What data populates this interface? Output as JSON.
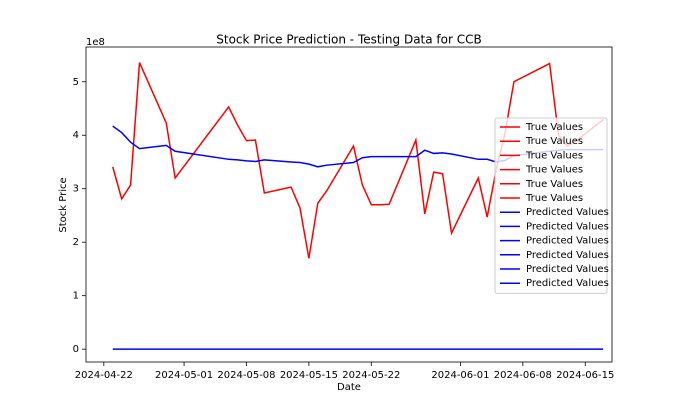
{
  "chart_data": {
    "type": "line",
    "title": "Stock Price Prediction - Testing Data for CCB",
    "x_label": "Date",
    "y_label": "Stock Price",
    "y_offset_label": "1e8",
    "x": [
      "2024-04-23",
      "2024-04-24",
      "2024-04-25",
      "2024-04-26",
      "2024-04-29",
      "2024-04-30",
      "2024-05-06",
      "2024-05-07",
      "2024-05-08",
      "2024-05-09",
      "2024-05-10",
      "2024-05-13",
      "2024-05-14",
      "2024-05-15",
      "2024-05-16",
      "2024-05-17",
      "2024-05-20",
      "2024-05-21",
      "2024-05-22",
      "2024-05-23",
      "2024-05-24",
      "2024-05-27",
      "2024-05-28",
      "2024-05-29",
      "2024-05-30",
      "2024-05-31",
      "2024-06-03",
      "2024-06-04",
      "2024-06-05",
      "2024-06-06",
      "2024-06-07",
      "2024-06-11",
      "2024-06-12",
      "2024-06-13",
      "2024-06-14",
      "2024-06-17"
    ],
    "series": [
      {
        "color": "#ff0000",
        "values": [
          3.41,
          2.81,
          3.07,
          5.36,
          4.23,
          3.2,
          4.53,
          4.19,
          3.9,
          3.91,
          2.92,
          3.03,
          2.64,
          1.7,
          2.73,
          2.96,
          3.8,
          3.07,
          2.7,
          2.7,
          2.71,
          3.91,
          2.53,
          3.31,
          3.28,
          2.17,
          3.2,
          2.47,
          3.35,
          4.04,
          5.0,
          5.34,
          4.0,
          3.8,
          3.9,
          4.29
        ]
      },
      {
        "color": "#0000ff",
        "values": [
          4.17,
          4.05,
          3.87,
          3.75,
          3.81,
          3.7,
          3.55,
          3.54,
          3.52,
          3.51,
          3.54,
          3.5,
          3.49,
          3.46,
          3.41,
          3.44,
          3.49,
          3.58,
          3.6,
          3.6,
          3.6,
          3.6,
          3.72,
          3.66,
          3.67,
          3.65,
          3.55,
          3.55,
          3.5,
          3.53,
          3.62,
          3.7,
          3.72,
          3.73,
          3.73,
          3.73
        ]
      },
      {
        "color": "#0000ff",
        "values": [
          0,
          0,
          0,
          0,
          0,
          0,
          0,
          0,
          0,
          0,
          0,
          0,
          0,
          0,
          0,
          0,
          0,
          0,
          0,
          0,
          0,
          0,
          0,
          0,
          0,
          0,
          0,
          0,
          0,
          0,
          0,
          0,
          0,
          0,
          0,
          0
        ]
      }
    ],
    "legend": [
      {
        "name": "True Values",
        "color": "#ff0000"
      },
      {
        "name": "True Values",
        "color": "#ff0000"
      },
      {
        "name": "True Values",
        "color": "#ff0000"
      },
      {
        "name": "True Values",
        "color": "#ff0000"
      },
      {
        "name": "True Values",
        "color": "#ff0000"
      },
      {
        "name": "True Values",
        "color": "#ff0000"
      },
      {
        "name": "Predicted Values",
        "color": "#0000ff"
      },
      {
        "name": "Predicted Values",
        "color": "#0000ff"
      },
      {
        "name": "Predicted Values",
        "color": "#0000ff"
      },
      {
        "name": "Predicted Values",
        "color": "#0000ff"
      },
      {
        "name": "Predicted Values",
        "color": "#0000ff"
      },
      {
        "name": "Predicted Values",
        "color": "#0000ff"
      }
    ],
    "legend_position": "right",
    "xlim": [
      "2024-04-20",
      "2024-06-18"
    ],
    "xticks": [
      "2024-04-22",
      "2024-05-01",
      "2024-05-08",
      "2024-05-15",
      "2024-05-22",
      "2024-06-01",
      "2024-06-08",
      "2024-06-15"
    ],
    "ylim": [
      -0.24,
      5.65
    ],
    "yticks": [
      0,
      1,
      2,
      3,
      4,
      5
    ]
  }
}
